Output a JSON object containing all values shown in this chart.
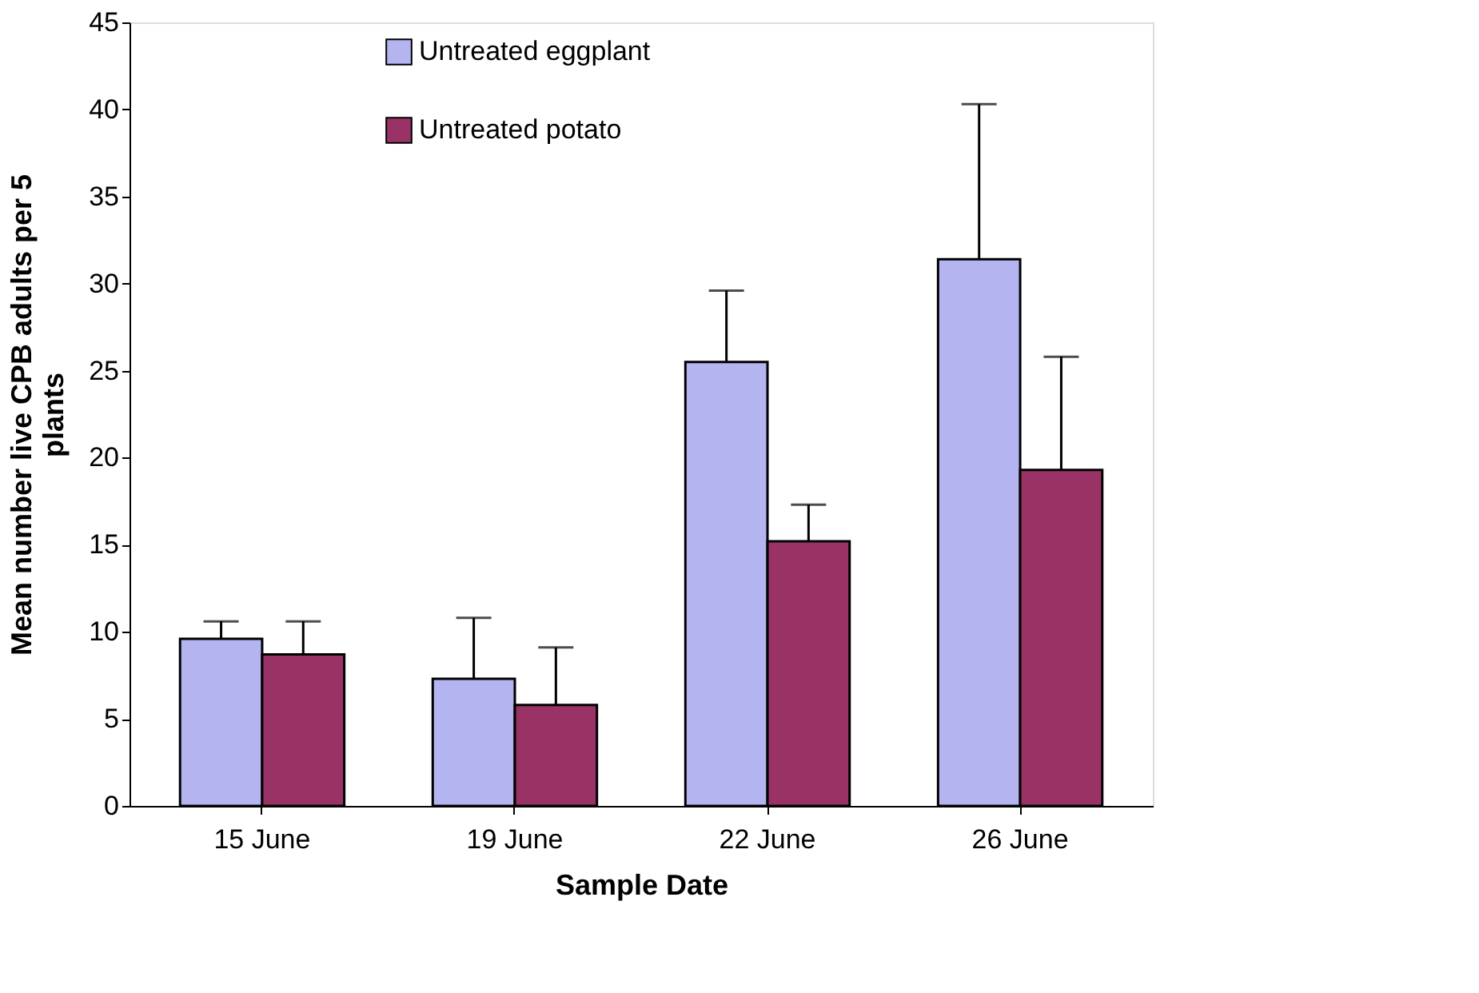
{
  "chart_data": {
    "type": "bar",
    "xlabel": "Sample Date",
    "ylabel": "Mean number live CPB adults per 5 plants",
    "categories": [
      "15 June",
      "19 June",
      "22 June",
      "26 June"
    ],
    "series": [
      {
        "name": "Untreated eggplant",
        "color": "#b4b4f0",
        "values": [
          9.6,
          7.3,
          25.5,
          31.4
        ],
        "errors": [
          [
            9.6,
            10.6
          ],
          [
            7.3,
            10.8
          ],
          [
            25.5,
            29.6
          ],
          [
            31.4,
            40.3
          ]
        ]
      },
      {
        "name": "Untreated potato",
        "color": "#993366",
        "values": [
          8.7,
          5.8,
          15.2,
          19.3
        ],
        "errors": [
          [
            8.7,
            10.6
          ],
          [
            5.8,
            9.1
          ],
          [
            15.2,
            17.3
          ],
          [
            19.3,
            25.8
          ]
        ]
      }
    ],
    "ylim": [
      0,
      45
    ],
    "yticks": [
      0,
      5,
      10,
      15,
      20,
      25,
      30,
      35,
      40,
      45
    ],
    "grid": false,
    "legend": "top left"
  }
}
